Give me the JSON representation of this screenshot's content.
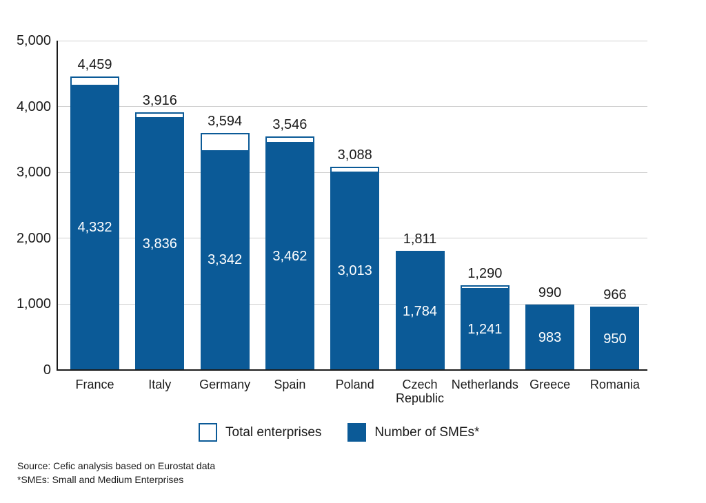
{
  "chart_data": {
    "type": "bar",
    "title": "",
    "categories": [
      "France",
      "Italy",
      "Germany",
      "Spain",
      "Poland",
      "Czech\nRepublic",
      "Netherlands",
      "Greece",
      "Romania"
    ],
    "series": [
      {
        "name": "Total enterprises",
        "style": "outline",
        "values": [
          4459,
          3916,
          3594,
          3546,
          3088,
          1811,
          1290,
          990,
          966
        ],
        "labels": [
          "4,459",
          "3,916",
          "3,594",
          "3,546",
          "3,088",
          "1,811",
          "1,290",
          "990",
          "966"
        ]
      },
      {
        "name": "Number of SMEs*",
        "style": "solid",
        "values": [
          4332,
          3836,
          3342,
          3462,
          3013,
          1784,
          1241,
          983,
          950
        ],
        "labels": [
          "4,332",
          "3,836",
          "3,342",
          "3,462",
          "3,013",
          "1,784",
          "1,241",
          "983",
          "950"
        ]
      }
    ],
    "xlabel": "",
    "ylabel": "",
    "ylim": [
      0,
      5000
    ],
    "yticks": [
      {
        "value": 0,
        "label": "0"
      },
      {
        "value": 1000,
        "label": "1,000"
      },
      {
        "value": 2000,
        "label": "2,000"
      },
      {
        "value": 3000,
        "label": "3,000"
      },
      {
        "value": 4000,
        "label": "4,000"
      },
      {
        "value": 5000,
        "label": "5,000"
      }
    ],
    "grid": true,
    "legend_position": "bottom"
  },
  "footer": {
    "source": "Source: Cefic analysis based on Eurostat data",
    "note": "*SMEs: Small and Medium Enterprises"
  },
  "colors": {
    "bar_blue": "#0b5a97",
    "grid": "#cfcfcf",
    "axis": "#1a1a1a",
    "text": "#1a1a1a",
    "bar_value_text": "#ffffff",
    "background": "#ffffff"
  }
}
